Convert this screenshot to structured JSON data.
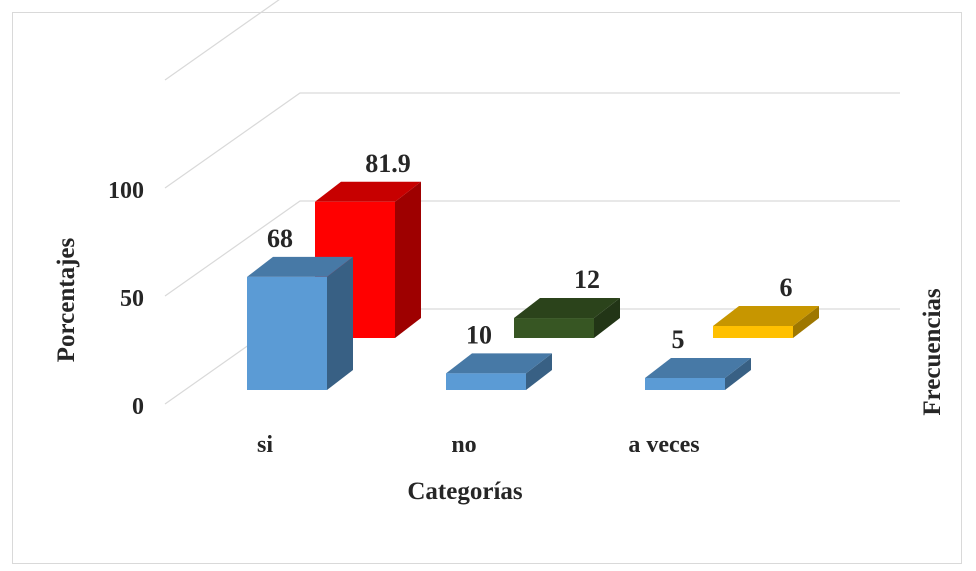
{
  "chart_data": {
    "type": "bar",
    "style": "3d-clustered-column",
    "categories": [
      "si",
      "no",
      "a veces"
    ],
    "series": [
      {
        "values": [
          68,
          10,
          5
        ],
        "colors": [
          "#5B9BD5",
          "#5B9BD5",
          "#5B9BD5"
        ]
      },
      {
        "values": [
          81.9,
          12,
          6
        ],
        "colors": [
          "#FF0000",
          "#375623",
          "#FFC000"
        ]
      }
    ],
    "xlabel": "Categorías",
    "ylabel": "Porcentajes",
    "y2label": "Frecuencias",
    "yticks": [
      "0",
      "50",
      "100"
    ],
    "ylim": [
      0,
      150
    ],
    "grid": true,
    "legend": "none"
  }
}
